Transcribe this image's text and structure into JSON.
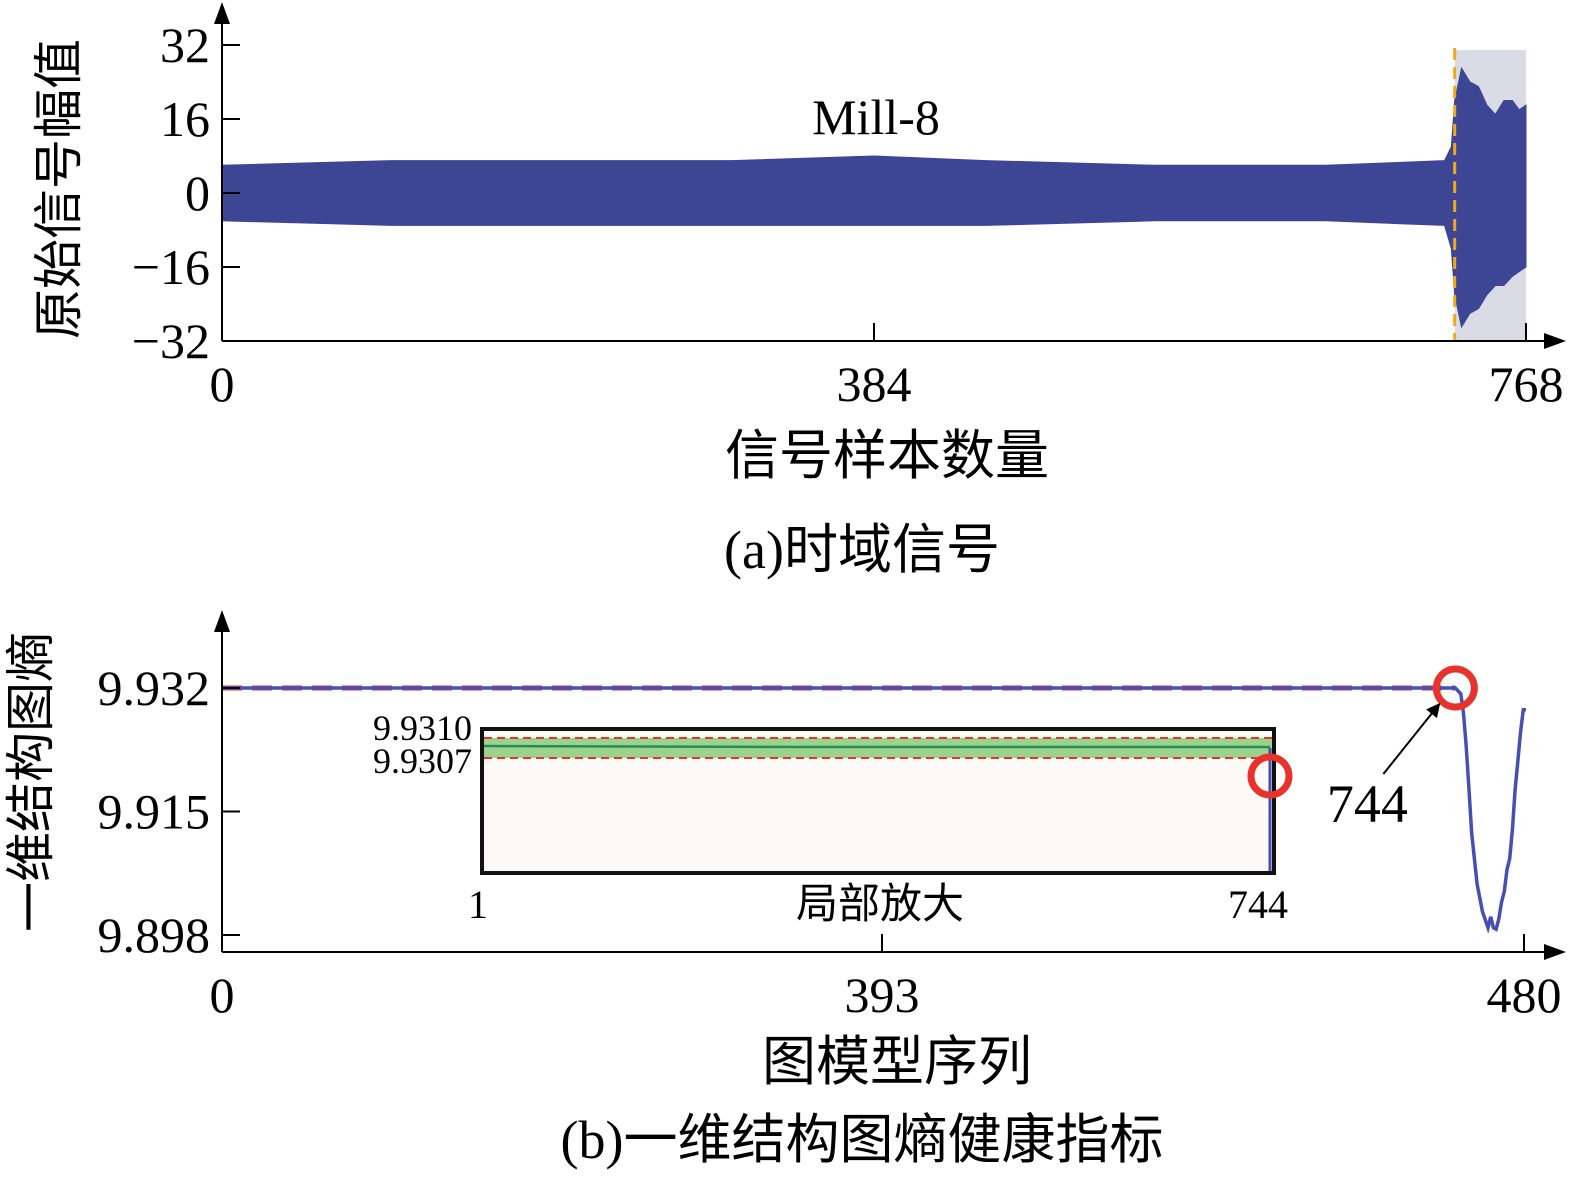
{
  "colors": {
    "signal": "#3d4595",
    "fault_band": "#d9dce4",
    "fault_marker": "#f2a81d",
    "threshold": "#e8322c",
    "entropy_line": "#4650b4",
    "inset_fill": "#9ad48c",
    "inset_line": "#2a8a5a",
    "circle": "#e8322c",
    "axis": "#000000"
  },
  "chart_data": [
    {
      "type": "area",
      "caption": "(a)时域信号",
      "annotation": "Mill-8",
      "xlabel": "信号样本数量",
      "ylabel": "原始信号幅值",
      "xlim": [
        0,
        768
      ],
      "ylim": [
        -32,
        32
      ],
      "x_ticks": [
        "0",
        "384",
        "768"
      ],
      "y_ticks": [
        "32",
        "16",
        "0",
        "−16",
        "−32"
      ],
      "series": [
        {
          "kind": "envelope",
          "x": [
            0,
            100,
            200,
            300,
            384,
            450,
            550,
            650,
            720,
            724,
            726,
            730,
            735,
            740,
            745,
            750,
            755,
            760,
            764,
            768
          ],
          "upper": [
            6,
            7,
            7,
            7,
            8,
            7,
            6,
            6,
            7,
            10,
            20,
            27,
            24,
            23,
            19,
            17,
            20,
            20,
            18,
            19
          ],
          "lower": [
            -6,
            -7,
            -7,
            -7,
            -7,
            -7,
            -6,
            -6,
            -7,
            -12,
            -22,
            -29,
            -26,
            -25,
            -22,
            -20,
            -20,
            -18,
            -17,
            -16
          ]
        }
      ],
      "fault_onset_x": 726,
      "shaded_region": [
        726,
        768
      ],
      "grid": false
    },
    {
      "type": "line",
      "caption": "(b)一维结构图熵健康指标",
      "annotation": "744",
      "xlabel": "图模型序列",
      "ylabel": "一维结构图熵",
      "xlim": [
        0,
        480
      ],
      "ylim": [
        9.898,
        9.932
      ],
      "x_ticks": [
        "0",
        "393",
        "480"
      ],
      "y_ticks": [
        "9.932",
        "9.915",
        "9.898"
      ],
      "threshold": 9.932,
      "marked_point": {
        "x": 454,
        "y": 9.932
      },
      "series": [
        {
          "kind": "line",
          "x": [
            0,
            454,
            456,
            457,
            458,
            459,
            460,
            462,
            464,
            466,
            467,
            468,
            469,
            470,
            471,
            472,
            473,
            474,
            475,
            476,
            477,
            478,
            479,
            480
          ],
          "y": [
            9.932,
            9.932,
            9.9312,
            9.9285,
            9.924,
            9.918,
            9.912,
            9.905,
            9.9012,
            9.899,
            9.9005,
            9.899,
            9.8988,
            9.9002,
            9.9025,
            9.904,
            9.907,
            9.9085,
            9.9125,
            9.918,
            9.922,
            9.926,
            9.929,
            9.929
          ]
        }
      ],
      "inset": {
        "label": "局部放大",
        "x_ticks": [
          "1",
          "744"
        ],
        "y_ticks": [
          "9.9310",
          "9.9307"
        ],
        "xlim": [
          1,
          744
        ],
        "band": [
          9.9307,
          9.931
        ],
        "marked_point": {
          "x": 744,
          "y": 9.9303
        }
      },
      "grid": false
    }
  ]
}
